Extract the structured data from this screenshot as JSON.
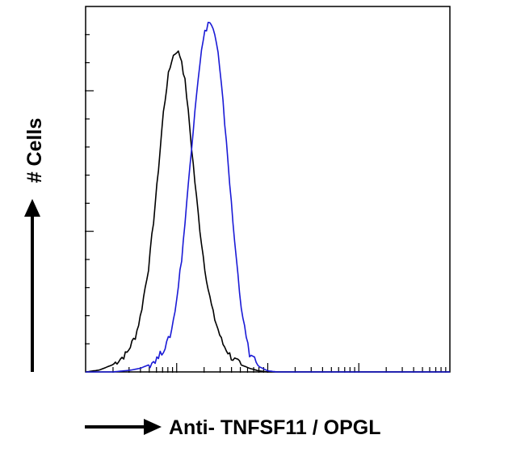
{
  "chart_data": {
    "type": "area",
    "title": "",
    "xlabel": "Anti- TNFSF11 / OPGL",
    "ylabel": "# Cells",
    "x_scale": "log",
    "x_decades": 4,
    "y_scale": "linear",
    "ylim": [
      0,
      1
    ],
    "grid": false,
    "legend": "none",
    "series": [
      {
        "color": "#000000",
        "x": [
          0,
          0.15,
          0.3,
          0.45,
          0.55,
          0.6,
          0.7,
          0.78,
          0.85,
          0.9,
          0.95,
          1.0,
          1.05,
          1.1,
          1.15,
          1.2,
          1.25,
          1.3,
          1.35,
          1.4,
          1.5,
          1.6,
          1.7,
          1.8,
          1.9,
          2.0,
          2.2,
          2.5,
          4.0
        ],
        "y": [
          0,
          0.005,
          0.02,
          0.05,
          0.1,
          0.15,
          0.3,
          0.5,
          0.7,
          0.8,
          0.86,
          0.88,
          0.86,
          0.78,
          0.65,
          0.52,
          0.4,
          0.3,
          0.22,
          0.16,
          0.08,
          0.04,
          0.02,
          0.01,
          0.003,
          0,
          0,
          0,
          0
        ]
      },
      {
        "color": "#1a1ad6",
        "x": [
          0,
          0.3,
          0.5,
          0.6,
          0.7,
          0.8,
          0.85,
          0.9,
          0.95,
          1.0,
          1.05,
          1.1,
          1.15,
          1.2,
          1.25,
          1.3,
          1.35,
          1.4,
          1.45,
          1.5,
          1.55,
          1.6,
          1.65,
          1.7,
          1.75,
          1.8,
          1.9,
          2.0,
          2.1,
          2.2,
          4.0
        ],
        "y": [
          0,
          0,
          0.005,
          0.01,
          0.02,
          0.04,
          0.06,
          0.08,
          0.12,
          0.2,
          0.3,
          0.43,
          0.58,
          0.72,
          0.84,
          0.92,
          0.96,
          0.94,
          0.88,
          0.76,
          0.62,
          0.46,
          0.32,
          0.2,
          0.11,
          0.05,
          0.015,
          0.003,
          0,
          0,
          0
        ]
      }
    ]
  }
}
